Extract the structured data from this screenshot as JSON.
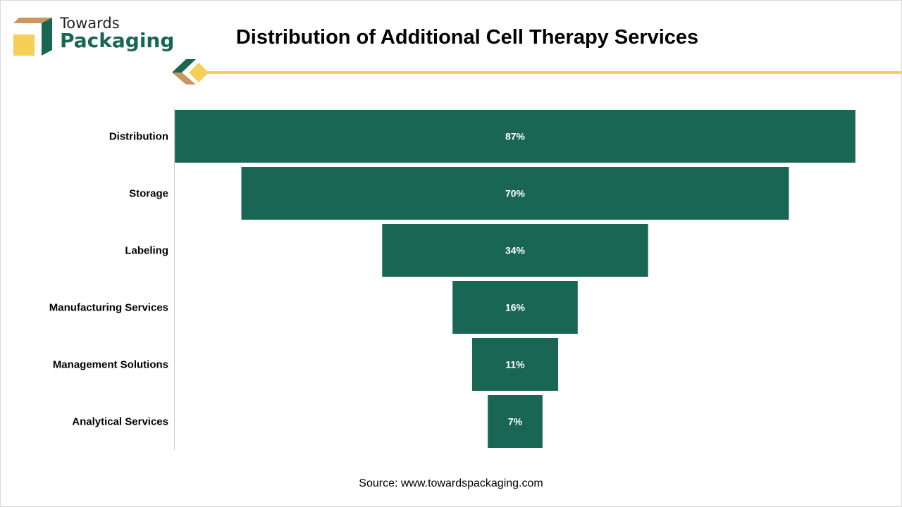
{
  "brand": {
    "line1": "Towards",
    "line2": "Packaging"
  },
  "colors": {
    "bar": "#1a6655",
    "accent": "#f5cf57",
    "tan": "#c9965f"
  },
  "chart_data": {
    "type": "bar",
    "subtype": "funnel",
    "title": "Distribution of Additional Cell Therapy Services",
    "categories": [
      "Distribution",
      "Storage",
      "Labeling",
      "Manufacturing Services",
      "Management Solutions",
      "Analytical Services"
    ],
    "values": [
      87,
      70,
      34,
      16,
      11,
      7
    ],
    "value_labels": [
      "87%",
      "70%",
      "34%",
      "16%",
      "11%",
      "7%"
    ],
    "unit": "%",
    "xlabel": "",
    "ylabel": "",
    "grid": false
  },
  "source": "Source: www.towardspackaging.com"
}
